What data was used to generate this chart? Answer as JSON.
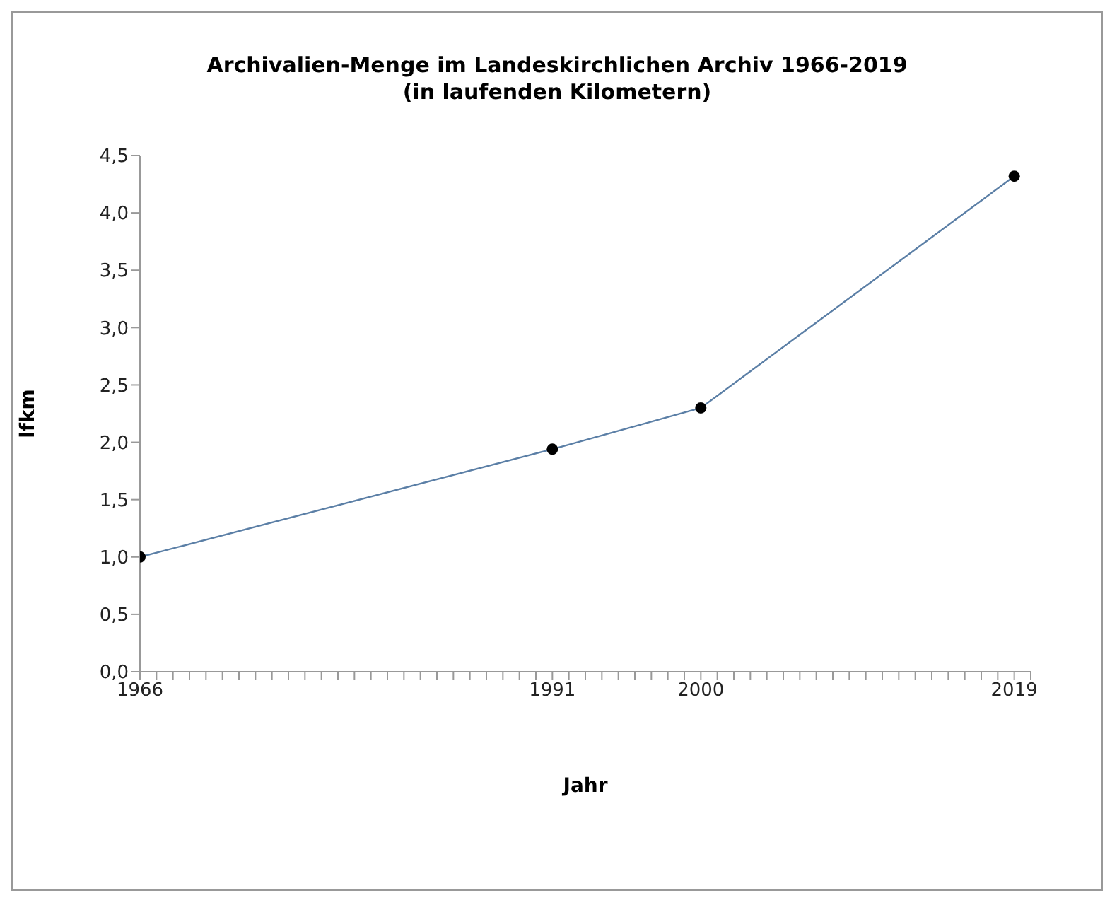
{
  "chart_data": {
    "type": "line",
    "title": "Archivalien-Menge im Landeskirchlichen Archiv 1966-2019\n(in laufenden Kilometern)",
    "xlabel": "Jahr",
    "ylabel": "lfkm",
    "x": [
      1966,
      1991,
      2000,
      2019
    ],
    "series": [
      {
        "color": "#5b7fa6",
        "values": [
          1.0,
          1.94,
          2.3,
          4.32
        ]
      }
    ],
    "marker": "circle",
    "grid": false,
    "legend": false,
    "xlim": [
      1966,
      2020
    ],
    "xticks": [
      1966,
      {
        "value": 1967,
        "label": null
      },
      {
        "value": 1968,
        "label": null
      },
      {
        "value": 1969,
        "label": null
      },
      {
        "value": 1970,
        "label": null
      },
      {
        "value": 1971,
        "label": null
      },
      {
        "value": 1972,
        "label": null
      },
      {
        "value": 1973,
        "label": null
      },
      {
        "value": 1974,
        "label": null
      },
      {
        "value": 1975,
        "label": null
      },
      {
        "value": 1976,
        "label": null
      },
      {
        "value": 1977,
        "label": null
      },
      {
        "value": 1978,
        "label": null
      },
      {
        "value": 1979,
        "label": null
      },
      {
        "value": 1980,
        "label": null
      },
      {
        "value": 1981,
        "label": null
      },
      {
        "value": 1982,
        "label": null
      },
      {
        "value": 1983,
        "label": null
      },
      {
        "value": 1984,
        "label": null
      },
      {
        "value": 1985,
        "label": null
      },
      {
        "value": 1986,
        "label": null
      },
      {
        "value": 1987,
        "label": null
      },
      {
        "value": 1988,
        "label": null
      },
      {
        "value": 1989,
        "label": null
      },
      {
        "value": 1990,
        "label": null
      },
      1991,
      {
        "value": 1992,
        "label": null
      },
      {
        "value": 1993,
        "label": null
      },
      {
        "value": 1994,
        "label": null
      },
      {
        "value": 1995,
        "label": null
      },
      {
        "value": 1996,
        "label": null
      },
      {
        "value": 1997,
        "label": null
      },
      {
        "value": 1998,
        "label": null
      },
      {
        "value": 1999,
        "label": null
      },
      2000,
      {
        "value": 2001,
        "label": null
      },
      {
        "value": 2002,
        "label": null
      },
      {
        "value": 2003,
        "label": null
      },
      {
        "value": 2004,
        "label": null
      },
      {
        "value": 2005,
        "label": null
      },
      {
        "value": 2006,
        "label": null
      },
      {
        "value": 2007,
        "label": null
      },
      {
        "value": 2008,
        "label": null
      },
      {
        "value": 2009,
        "label": null
      },
      {
        "value": 2010,
        "label": null
      },
      {
        "value": 2011,
        "label": null
      },
      {
        "value": 2012,
        "label": null
      },
      {
        "value": 2013,
        "label": null
      },
      {
        "value": 2014,
        "label": null
      },
      {
        "value": 2015,
        "label": null
      },
      {
        "value": 2016,
        "label": null
      },
      {
        "value": 2017,
        "label": null
      },
      {
        "value": 2018,
        "label": null
      },
      2019,
      {
        "value": 2020,
        "label": null
      }
    ],
    "ylim": [
      0,
      4.5
    ],
    "yticks": [
      {
        "value": 0,
        "label": "0,0"
      },
      {
        "value": 0.5,
        "label": "0,5"
      },
      {
        "value": 1,
        "label": "1,0"
      },
      {
        "value": 1.5,
        "label": "1,5"
      },
      {
        "value": 2,
        "label": "2,0"
      },
      {
        "value": 2.5,
        "label": "2,5"
      },
      {
        "value": 3,
        "label": "3,0"
      },
      {
        "value": 3.5,
        "label": "3,5"
      },
      {
        "value": 4,
        "label": "4,0"
      },
      {
        "value": 4.5,
        "label": "4,5"
      }
    ]
  }
}
